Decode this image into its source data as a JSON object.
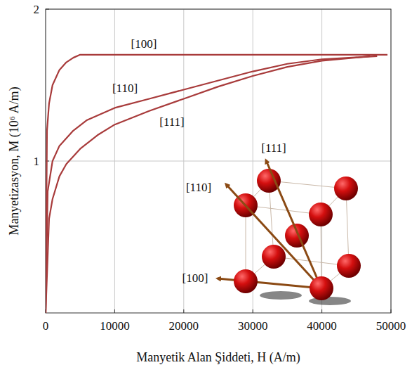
{
  "chart_data": {
    "type": "line",
    "xlabel": "Manyetik Alan Şiddeti, H (A/m)",
    "ylabel": "Manyetizasyon, M (10⁶ A/m)",
    "xlim": [
      0,
      50000
    ],
    "xticks": [
      0,
      10000,
      20000,
      30000,
      40000,
      50000
    ],
    "ylim": [
      0,
      2
    ],
    "yticks": [
      1,
      2
    ],
    "grid": true,
    "series": [
      {
        "name": "[100]",
        "color": "#a83b3b",
        "x": [
          0,
          200,
          500,
          1000,
          2000,
          3000,
          4000,
          5000,
          10000,
          20000,
          30000,
          40000,
          49500
        ],
        "values": [
          0,
          1.2,
          1.38,
          1.5,
          1.6,
          1.65,
          1.68,
          1.7,
          1.7,
          1.7,
          1.7,
          1.7,
          1.7
        ]
      },
      {
        "name": "[110]",
        "color": "#a83b3b",
        "x": [
          0,
          300,
          1000,
          2000,
          4000,
          6000,
          10000,
          15000,
          20000,
          25000,
          30000,
          35000,
          40000,
          48000
        ],
        "values": [
          0,
          0.8,
          1.0,
          1.1,
          1.2,
          1.27,
          1.35,
          1.41,
          1.47,
          1.53,
          1.59,
          1.64,
          1.67,
          1.69
        ]
      },
      {
        "name": "[111]",
        "color": "#a83b3b",
        "x": [
          0,
          500,
          1000,
          2000,
          3000,
          5000,
          7500,
          10000,
          15000,
          20000,
          25000,
          30000,
          35000,
          40000,
          47000
        ],
        "values": [
          0,
          0.62,
          0.75,
          0.9,
          0.98,
          1.08,
          1.17,
          1.24,
          1.33,
          1.41,
          1.49,
          1.56,
          1.62,
          1.66,
          1.69
        ]
      }
    ],
    "annotations": [
      "[111]",
      "[110]",
      "[100]"
    ]
  }
}
